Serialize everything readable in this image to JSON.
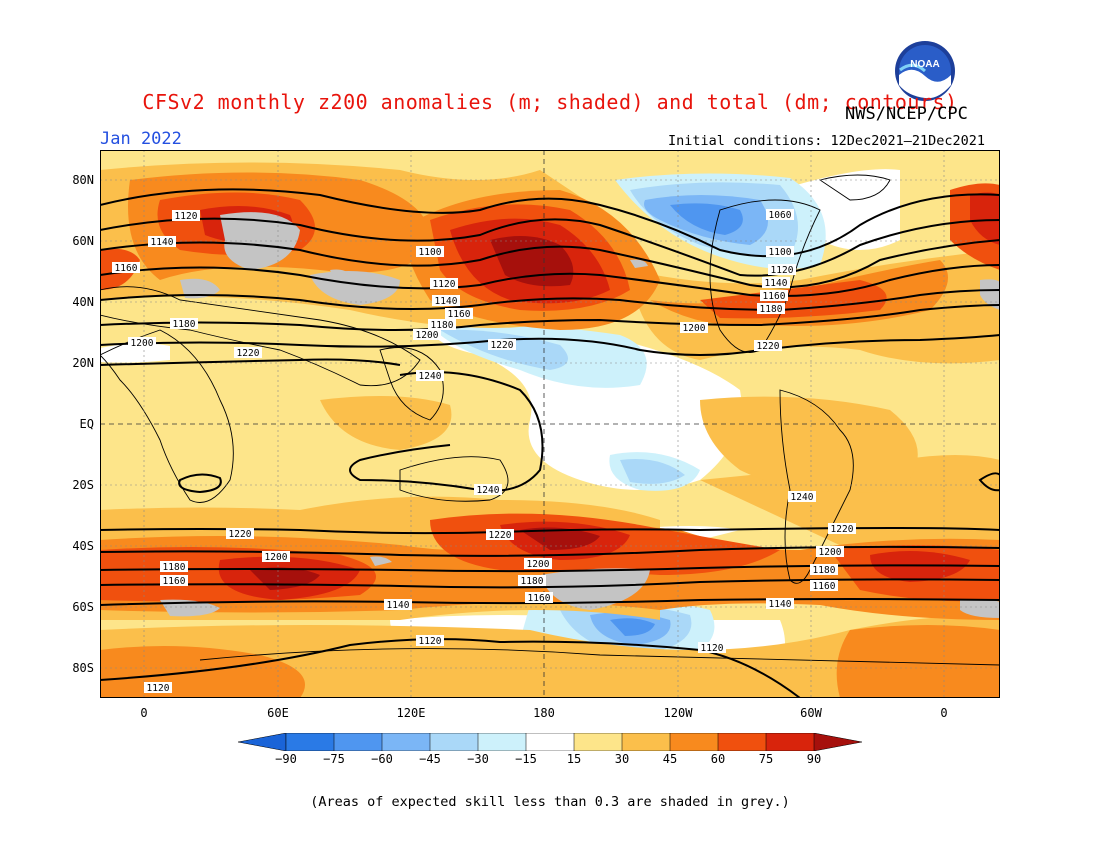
{
  "header": {
    "title": "CFSv2 monthly z200 anomalies (m; shaded) and total (dm; contours)",
    "agency": "NWS/NCEP/CPC",
    "month": "Jan 2022",
    "initial_conditions": "Initial conditions: 12Dec2021–21Dec2021",
    "logo_text": "NOAA"
  },
  "axes": {
    "lat_labels": [
      "80N",
      "60N",
      "40N",
      "20N",
      "EQ",
      "20S",
      "40S",
      "60S",
      "80S"
    ],
    "lon_labels": [
      "0",
      "60E",
      "120E",
      "180",
      "120W",
      "60W",
      "0"
    ]
  },
  "colorbar": {
    "labels": [
      "−90",
      "−75",
      "−60",
      "−45",
      "−30",
      "−15",
      "15",
      "30",
      "45",
      "60",
      "75",
      "90"
    ],
    "colors": [
      "#1a64d8",
      "#2a7ae6",
      "#4f96f0",
      "#7bb6f6",
      "#aad8f8",
      "#cdf1fb",
      "#ffffff",
      "#fde58a",
      "#fbbf4b",
      "#f88a1e",
      "#f0500e",
      "#d8240c",
      "#a6100c"
    ]
  },
  "contour_labels": [
    "1060",
    "1100",
    "1120",
    "1140",
    "1160",
    "1180",
    "1200",
    "1220",
    "1240"
  ],
  "footnote": "(Areas of expected skill less than 0.3 are shaded in grey.)",
  "colors": {
    "title": "#e8140c",
    "month": "#2450e0",
    "grey_low_skill": "#c4c4c4"
  }
}
